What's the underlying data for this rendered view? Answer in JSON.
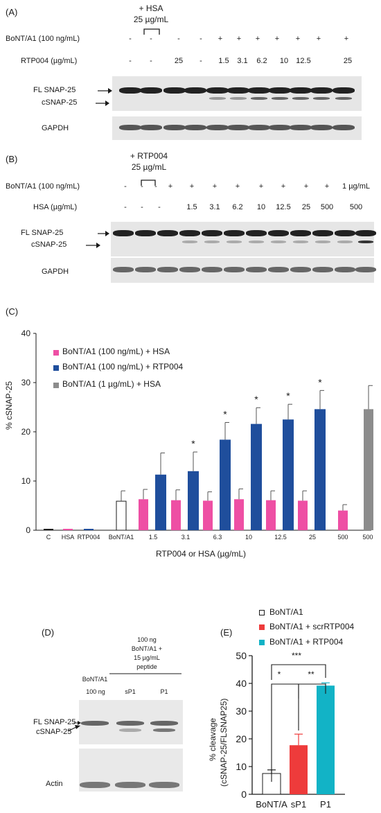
{
  "panel_a": {
    "label": "(A)",
    "hsa_line1": "+ HSA",
    "hsa_line2": "25 µg/mL",
    "row1_label": "BoNT/A1 (100 ng/mL)",
    "row1": [
      "-",
      "-",
      "-",
      "-",
      "+",
      "+",
      "+",
      "+",
      "+",
      "+",
      "+"
    ],
    "row2_label": "RTP004 (µg/mL)",
    "row2": [
      "-",
      "-",
      "25",
      "-",
      "1.5",
      "3.1",
      "6.2",
      "10",
      "12.5",
      "25"
    ],
    "fl_label": "FL SNAP-25",
    "c_label": "cSNAP-25",
    "gapdh_label": "GAPDH"
  },
  "panel_b": {
    "label": "(B)",
    "rtp_line1": "+ RTP004",
    "rtp_line2": "25 µg/mL",
    "row1_label": "BoNT/A1 (100 ng/mL)",
    "row1": [
      "-",
      "-",
      "-",
      "+",
      "+",
      "+",
      "+",
      "+",
      "+",
      "+",
      "+",
      "1 µg/mL"
    ],
    "row2_label": "HSA (µg/mL)",
    "row2": [
      "-",
      "-",
      "-",
      "1.5",
      "3.1",
      "6.2",
      "10",
      "12.5",
      "25",
      "500",
      "500"
    ],
    "fl_label": "FL SNAP-25",
    "c_label": "cSNAP-25",
    "gapdh_label": "GAPDH"
  },
  "panel_c": {
    "label": "(C)",
    "ylabel": "% cSNAP-25",
    "xlabel": "RTP004 or HSA (µg/mL)",
    "sig_marker": "*"
  },
  "panel_d": {
    "label": "(D)",
    "header1": "100 ng",
    "header2": "BoNT/A1 +",
    "header3": "15 µg/mL",
    "header4": "peptide",
    "lane1_top": "BoNT/A1",
    "lane1_bottom": "100 ng",
    "lane2": "sP1",
    "lane3": "P1",
    "fl_label": "FL SNAP-25",
    "c_label": "cSNAP-25",
    "actin_label": "Actin"
  },
  "panel_e": {
    "label": "(E)",
    "ylabel_line1": "% cleavage",
    "ylabel_line2": "(cSNAP-25/FLSNAP25)",
    "sig1": "*",
    "sig2": "**",
    "sig3": "***"
  },
  "colors": {
    "hsa": "#ee4fa4",
    "rtp004": "#1f4e9c",
    "high_dose": "#8c8c8c",
    "bont": "#ffffff",
    "e_bont": "#ffffff",
    "e_scr": "#ee3b3b",
    "e_rtp": "#12b3c6"
  },
  "chart_data": [
    {
      "type": "bar",
      "panel": "C",
      "ylabel": "% cSNAP-25",
      "xlabel": "RTP004 or HSA (µg/mL)",
      "ylim": [
        0,
        40
      ],
      "yticks": [
        0,
        10,
        20,
        30,
        40
      ],
      "legend_position": "top-left",
      "legend": [
        {
          "label": "BoNT/A1 (100 ng/mL) + HSA",
          "color": "#ee4fa4"
        },
        {
          "label": "BoNT/A1 (100 ng/mL) + RTP004",
          "color": "#1f4e9c"
        },
        {
          "label": "BoNT/A1 (1 µg/mL) + HSA",
          "color": "#8c8c8c"
        }
      ],
      "groups": [
        {
          "label": "C",
          "bars": [
            {
              "series": "control",
              "value": 0.1,
              "color": "#1a1a1a"
            }
          ]
        },
        {
          "label": "HSA",
          "bars": [
            {
              "series": "hsa",
              "value": 0.1,
              "color": "#ee4fa4"
            }
          ]
        },
        {
          "label": "RTP004",
          "bars": [
            {
              "series": "rtp004",
              "value": 0.1,
              "color": "#1f4e9c"
            }
          ]
        },
        {
          "label": "BoNT/A1",
          "bars": [
            {
              "series": "bont",
              "value": 5.9,
              "error": 2.1,
              "color": "#ffffff",
              "outline": true
            }
          ]
        },
        {
          "label": "1.5",
          "bars": [
            {
              "series": "hsa",
              "value": 6.3,
              "error": 2.0,
              "color": "#ee4fa4"
            },
            {
              "series": "rtp004",
              "value": 11.3,
              "error": 4.4,
              "color": "#1f4e9c"
            }
          ]
        },
        {
          "label": "3.1",
          "bars": [
            {
              "series": "hsa",
              "value": 6.1,
              "error": 2.1,
              "color": "#ee4fa4"
            },
            {
              "series": "rtp004",
              "value": 12.0,
              "error": 3.9,
              "color": "#1f4e9c",
              "sig": "*"
            }
          ]
        },
        {
          "label": "6.3",
          "bars": [
            {
              "series": "hsa",
              "value": 6.0,
              "error": 1.8,
              "color": "#ee4fa4"
            },
            {
              "series": "rtp004",
              "value": 18.4,
              "error": 3.5,
              "color": "#1f4e9c",
              "sig": "*"
            }
          ]
        },
        {
          "label": "10",
          "bars": [
            {
              "series": "hsa",
              "value": 6.3,
              "error": 2.1,
              "color": "#ee4fa4"
            },
            {
              "series": "rtp004",
              "value": 21.6,
              "error": 3.3,
              "color": "#1f4e9c",
              "sig": "*"
            }
          ]
        },
        {
          "label": "12.5",
          "bars": [
            {
              "series": "hsa",
              "value": 6.1,
              "error": 1.9,
              "color": "#ee4fa4"
            },
            {
              "series": "rtp004",
              "value": 22.5,
              "error": 3.1,
              "color": "#1f4e9c",
              "sig": "*"
            }
          ]
        },
        {
          "label": "25",
          "bars": [
            {
              "series": "hsa",
              "value": 6.0,
              "error": 2.0,
              "color": "#ee4fa4"
            },
            {
              "series": "rtp004",
              "value": 24.6,
              "error": 3.8,
              "color": "#1f4e9c",
              "sig": "*"
            }
          ]
        },
        {
          "label": "500",
          "bars": [
            {
              "series": "hsa",
              "value": 4.0,
              "error": 1.2,
              "color": "#ee4fa4"
            }
          ]
        },
        {
          "label": "500",
          "bars": [
            {
              "series": "high_dose",
              "value": 24.6,
              "error": 4.8,
              "color": "#8c8c8c"
            }
          ]
        }
      ]
    },
    {
      "type": "bar",
      "panel": "E",
      "ylabel": "% cleavage (cSNAP-25/FLSNAP25)",
      "ylim": [
        0,
        50
      ],
      "yticks": [
        0,
        10,
        20,
        30,
        40,
        50
      ],
      "legend_position": "top",
      "categories": [
        "BoNT/A",
        "sP1",
        "P1"
      ],
      "values": [
        7.5,
        17.7,
        39.2
      ],
      "errors": [
        1.3,
        4.0,
        1.0
      ],
      "colors": [
        "#ffffff",
        "#ee3b3b",
        "#12b3c6"
      ],
      "legend": [
        {
          "label": "BoNT/A1",
          "color": "#ffffff"
        },
        {
          "label": "BoNT/A1 + scrRTP004",
          "color": "#ee3b3b"
        },
        {
          "label": "BoNT/A1 + RTP004",
          "color": "#12b3c6"
        }
      ],
      "comparisons": [
        {
          "from": "BoNT/A",
          "to": "sP1",
          "sig": "*"
        },
        {
          "from": "sP1",
          "to": "P1",
          "sig": "**"
        },
        {
          "from": "BoNT/A",
          "to": "P1",
          "sig": "***"
        }
      ]
    }
  ]
}
